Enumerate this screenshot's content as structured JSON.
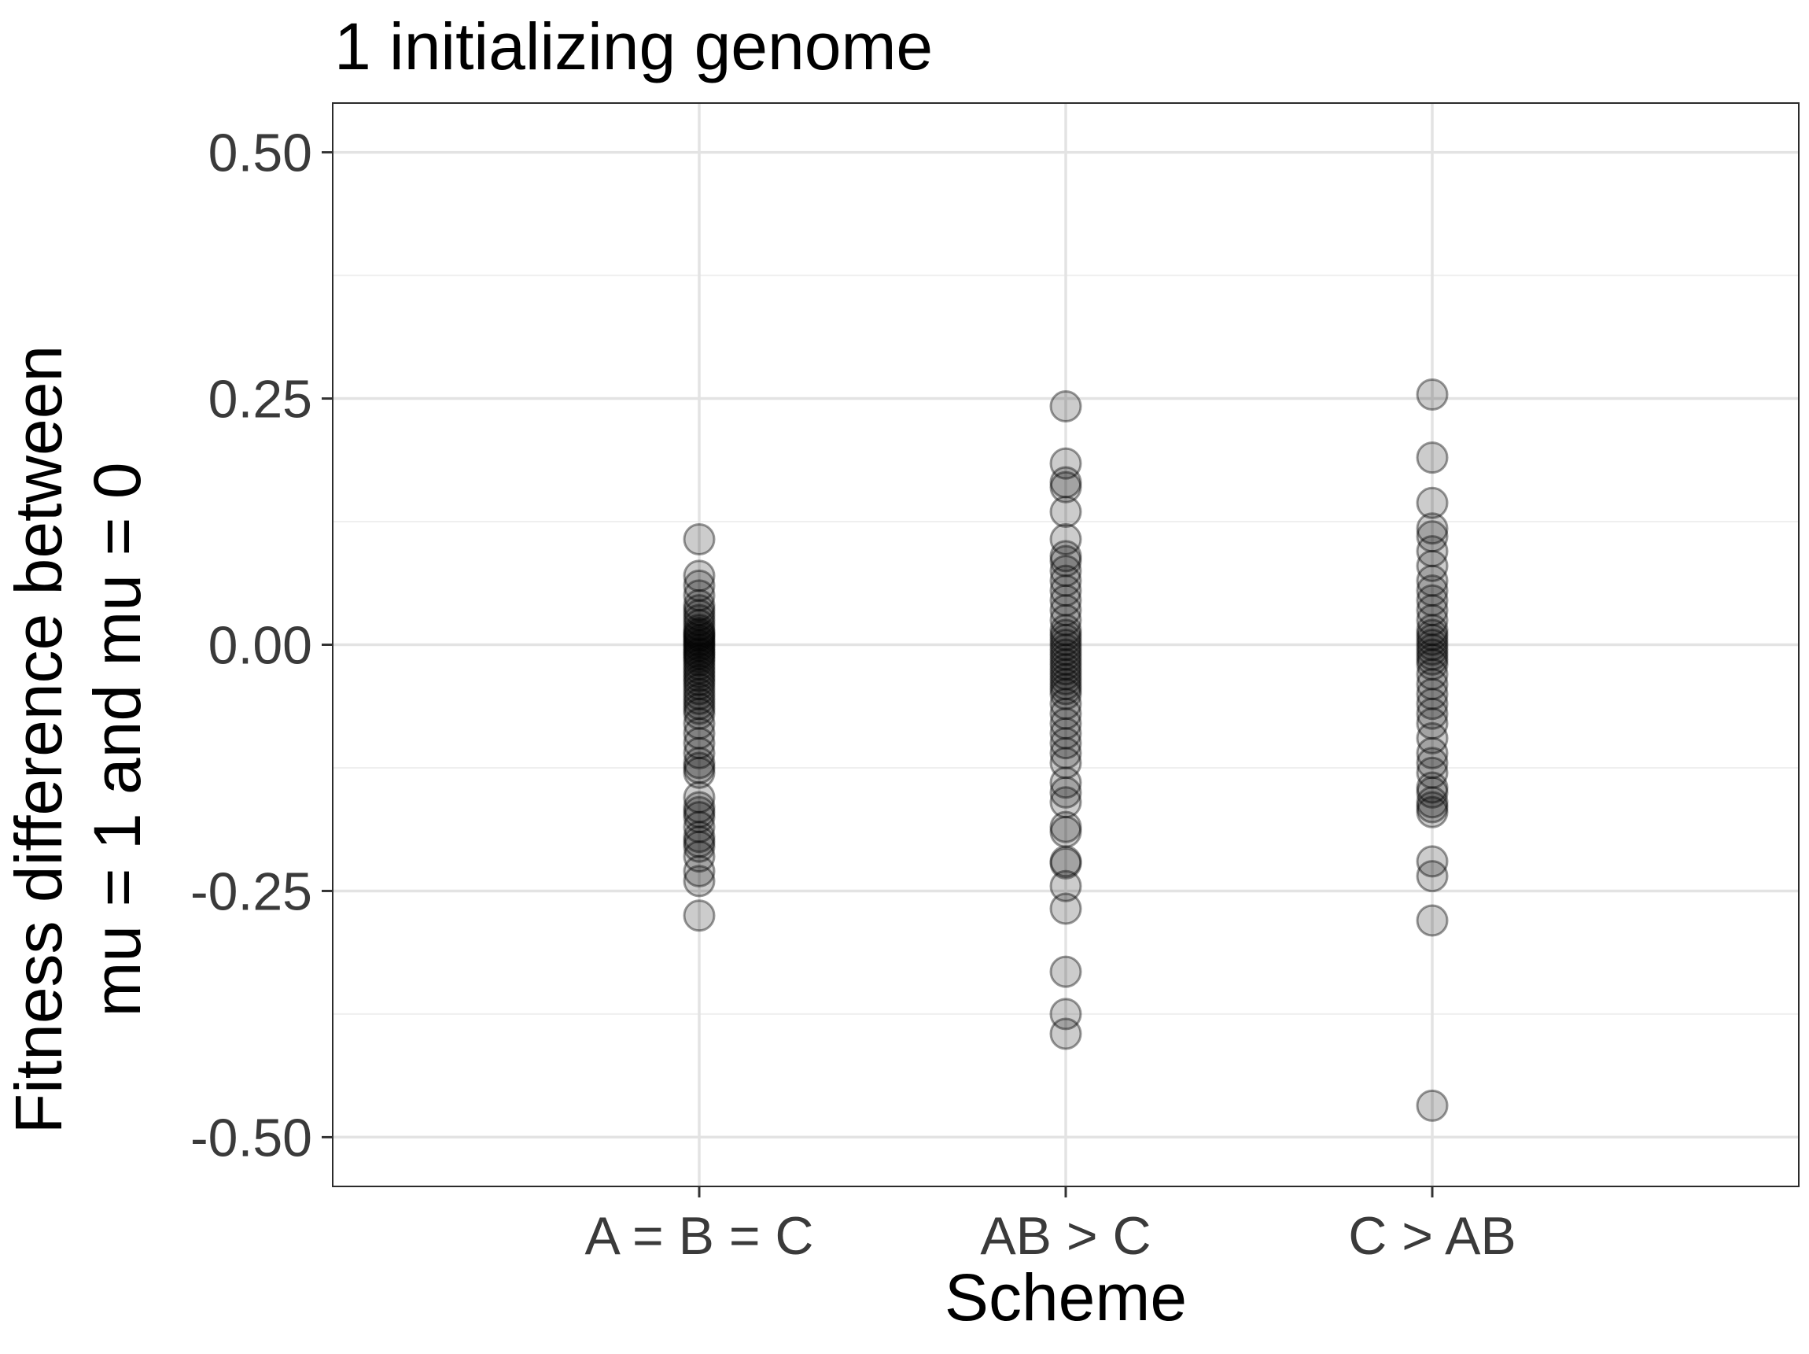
{
  "chart_data": {
    "type": "scatter",
    "title": "1 initializing genome",
    "xlabel": "Scheme",
    "ylabel_lines": [
      "Fitness difference between",
      "mu = 1 and mu = 0"
    ],
    "categories": [
      "A = B = C",
      "AB > C",
      "C > AB"
    ],
    "ylim": [
      -0.55,
      0.55
    ],
    "y_ticks": [
      0.5,
      0.25,
      0.0,
      -0.25,
      -0.5
    ],
    "y_tick_labels": [
      "0.50",
      "0.25",
      "0.00",
      "-0.25",
      "-0.50"
    ],
    "grid": true,
    "point_alpha": 0.2,
    "series": [
      {
        "category": "A = B = C",
        "values": [
          0.107,
          0.07,
          0.06,
          0.05,
          0.04,
          0.035,
          0.03,
          0.025,
          0.02,
          0.015,
          0.012,
          0.01,
          0.008,
          0.005,
          0.003,
          0.0,
          -0.002,
          -0.005,
          -0.008,
          -0.01,
          -0.013,
          -0.016,
          -0.02,
          -0.024,
          -0.028,
          -0.032,
          -0.036,
          -0.04,
          -0.045,
          -0.05,
          -0.055,
          -0.06,
          -0.065,
          -0.07,
          -0.08,
          -0.09,
          -0.1,
          -0.11,
          -0.12,
          -0.125,
          -0.13,
          -0.155,
          -0.165,
          -0.17,
          -0.175,
          -0.185,
          -0.195,
          -0.2,
          -0.205,
          -0.215,
          -0.23,
          -0.24,
          -0.275
        ]
      },
      {
        "category": "AB > C",
        "values": [
          0.242,
          0.184,
          0.165,
          0.16,
          0.135,
          0.107,
          0.09,
          0.085,
          0.075,
          0.065,
          0.055,
          0.045,
          0.035,
          0.025,
          0.015,
          0.01,
          0.005,
          0.0,
          -0.005,
          -0.01,
          -0.015,
          -0.02,
          -0.025,
          -0.03,
          -0.035,
          -0.04,
          -0.045,
          -0.05,
          -0.06,
          -0.07,
          -0.08,
          -0.09,
          -0.1,
          -0.11,
          -0.12,
          -0.14,
          -0.15,
          -0.16,
          -0.185,
          -0.19,
          -0.22,
          -0.222,
          -0.245,
          -0.268,
          -0.332,
          -0.375,
          -0.395
        ]
      },
      {
        "category": "C > AB",
        "values": [
          0.254,
          0.19,
          0.144,
          0.118,
          0.11,
          0.095,
          0.08,
          0.065,
          0.055,
          0.045,
          0.035,
          0.025,
          0.015,
          0.01,
          0.005,
          0.0,
          -0.005,
          -0.01,
          -0.015,
          -0.02,
          -0.03,
          -0.04,
          -0.05,
          -0.06,
          -0.07,
          -0.08,
          -0.095,
          -0.11,
          -0.12,
          -0.13,
          -0.145,
          -0.15,
          -0.16,
          -0.165,
          -0.17,
          -0.22,
          -0.235,
          -0.28,
          -0.468
        ]
      }
    ]
  }
}
